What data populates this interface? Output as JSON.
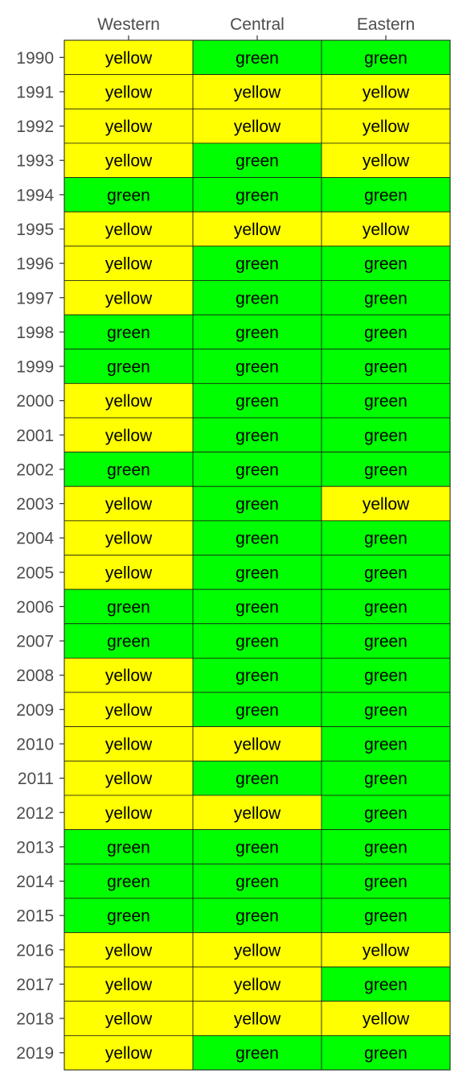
{
  "chart_data": {
    "type": "heatmap",
    "title": "",
    "xlabel": "",
    "ylabel": "",
    "x_axis_position": "top",
    "grid": false,
    "legend": "none",
    "columns": [
      "Western",
      "Central",
      "Eastern"
    ],
    "rows": [
      "1990",
      "1991",
      "1992",
      "1993",
      "1994",
      "1995",
      "1996",
      "1997",
      "1998",
      "1999",
      "2000",
      "2001",
      "2002",
      "2003",
      "2004",
      "2005",
      "2006",
      "2007",
      "2008",
      "2009",
      "2010",
      "2011",
      "2012",
      "2013",
      "2014",
      "2015",
      "2016",
      "2017",
      "2018",
      "2019"
    ],
    "values": [
      [
        "yellow",
        "green",
        "green"
      ],
      [
        "yellow",
        "yellow",
        "yellow"
      ],
      [
        "yellow",
        "yellow",
        "yellow"
      ],
      [
        "yellow",
        "green",
        "yellow"
      ],
      [
        "green",
        "green",
        "green"
      ],
      [
        "yellow",
        "yellow",
        "yellow"
      ],
      [
        "yellow",
        "green",
        "green"
      ],
      [
        "yellow",
        "green",
        "green"
      ],
      [
        "green",
        "green",
        "green"
      ],
      [
        "green",
        "green",
        "green"
      ],
      [
        "yellow",
        "green",
        "green"
      ],
      [
        "yellow",
        "green",
        "green"
      ],
      [
        "green",
        "green",
        "green"
      ],
      [
        "yellow",
        "green",
        "yellow"
      ],
      [
        "yellow",
        "green",
        "green"
      ],
      [
        "yellow",
        "green",
        "green"
      ],
      [
        "green",
        "green",
        "green"
      ],
      [
        "green",
        "green",
        "green"
      ],
      [
        "yellow",
        "green",
        "green"
      ],
      [
        "yellow",
        "green",
        "green"
      ],
      [
        "yellow",
        "yellow",
        "green"
      ],
      [
        "yellow",
        "green",
        "green"
      ],
      [
        "yellow",
        "yellow",
        "green"
      ],
      [
        "green",
        "green",
        "green"
      ],
      [
        "green",
        "green",
        "green"
      ],
      [
        "green",
        "green",
        "green"
      ],
      [
        "yellow",
        "yellow",
        "yellow"
      ],
      [
        "yellow",
        "yellow",
        "green"
      ],
      [
        "yellow",
        "yellow",
        "yellow"
      ],
      [
        "yellow",
        "green",
        "green"
      ]
    ],
    "colors": {
      "yellow": "#ffff00",
      "green": "#00ff00"
    }
  }
}
